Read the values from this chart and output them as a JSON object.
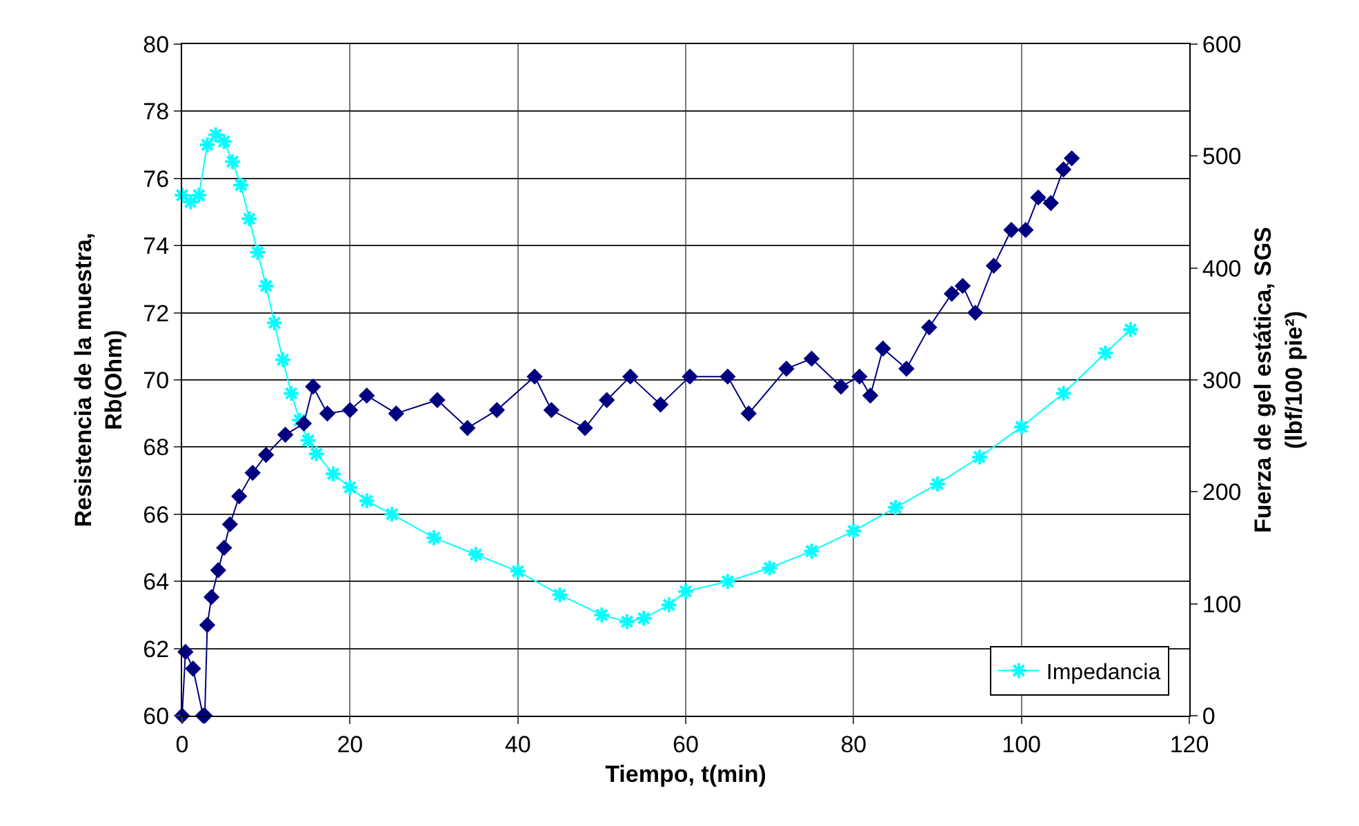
{
  "chart_data": {
    "type": "line",
    "xlabel": "Tiempo, t(min)",
    "ylabel": "Resistencia de la muestra,\nRb(Ohm)",
    "y2label": "Fuerza de gel estática, SGS\n(lbf/100 pie²)",
    "xlim": [
      0,
      120
    ],
    "xticks": [
      0,
      20,
      40,
      60,
      80,
      100,
      120
    ],
    "ylim": [
      60,
      80
    ],
    "yticks": [
      60,
      62,
      64,
      66,
      68,
      70,
      72,
      74,
      76,
      78,
      80
    ],
    "y2lim": [
      0,
      600
    ],
    "y2ticks": [
      0,
      100,
      200,
      300,
      400,
      500,
      600
    ],
    "grid": true,
    "legend": "bottom right",
    "line_style": "solid",
    "series": [
      {
        "name": "Impedancia",
        "color": "#00ffff",
        "marker": "cross",
        "x": [
          0,
          1,
          2,
          3,
          4,
          5,
          6,
          7,
          8,
          9,
          10,
          11,
          12,
          13,
          14,
          15,
          16,
          18,
          20,
          22,
          25,
          30,
          35,
          40,
          45,
          50,
          53,
          55,
          58,
          60,
          65,
          70,
          75,
          80,
          85,
          90,
          95,
          100,
          105,
          110,
          113
        ],
        "values": [
          75.5,
          75.3,
          75.5,
          77,
          77.3,
          77.1,
          76.5,
          75.8,
          74.8,
          73.8,
          72.8,
          71.7,
          70.6,
          69.6,
          68.8,
          68.2,
          67.8,
          67.2,
          66.8,
          66.4,
          66,
          65.3,
          64.8,
          64.3,
          63.6,
          63,
          62.8,
          62.9,
          63.3,
          63.7,
          64,
          64.4,
          64.9,
          65.5,
          66.2,
          66.9,
          67.7,
          68.6,
          69.6,
          70.8,
          71.5
        ]
      },
      {
        "color": "#000080",
        "marker": "diamond",
        "axis": "y2",
        "x": [
          0,
          0.4,
          1.3,
          2.5,
          2.7,
          3,
          3.5,
          4.3,
          5,
          5.7,
          6.8,
          8.4,
          10,
          12.3,
          14.5,
          15.6,
          17.3,
          20,
          22,
          25.5,
          30.4,
          34,
          37.5,
          42,
          44,
          48,
          50.6,
          53.4,
          57,
          60.5,
          65,
          67.5,
          72,
          75,
          78.5,
          80.7,
          82,
          83.5,
          86.3,
          89,
          91.7,
          93,
          94.5,
          96.7,
          98.8,
          100.5,
          102,
          103.5,
          105,
          106
        ],
        "values": [
          0,
          57,
          42,
          0,
          0,
          81,
          106,
          130,
          150,
          171,
          196,
          217,
          233,
          251,
          261,
          294,
          270,
          273,
          286,
          270,
          282,
          257,
          273,
          303,
          273,
          257,
          282,
          303,
          278,
          303,
          303,
          270,
          310,
          319,
          294,
          303,
          286,
          328,
          310,
          347,
          377,
          384,
          360,
          402,
          434,
          434,
          463,
          458,
          488,
          498
        ]
      }
    ]
  }
}
